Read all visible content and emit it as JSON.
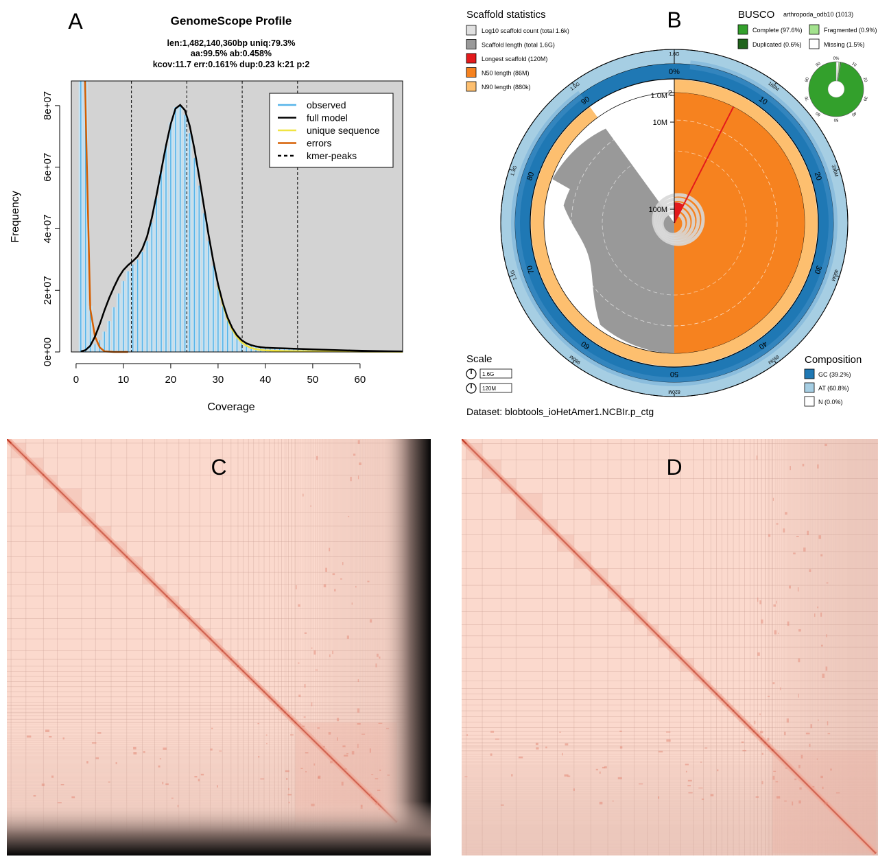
{
  "panels": {
    "a": {
      "letter": "A",
      "chart_data": {
        "type": "bar",
        "title": "GenomeScope Profile",
        "subtitle_lines": [
          "len:1,482,140,360bp uniq:79.3%",
          "aa:99.5% ab:0.458%",
          "kcov:11.7 err:0.161%  dup:0.23  k:21 p:2"
        ],
        "xlabel": "Coverage",
        "ylabel": "Frequency",
        "xlim": [
          -1,
          69
        ],
        "ylim": [
          0,
          88000000
        ],
        "xticks": [
          0,
          10,
          20,
          30,
          40,
          50,
          60
        ],
        "yticks": [
          0,
          20000000,
          40000000,
          60000000,
          80000000
        ],
        "ytick_labels": [
          "0e+00",
          "2e+07",
          "4e+07",
          "6e+07",
          "8e+07"
        ],
        "legend_position": "top-right",
        "legend": [
          {
            "label": "observed",
            "color": "#56b4e9",
            "style": "solid"
          },
          {
            "label": "full model",
            "color": "#000000",
            "style": "solid"
          },
          {
            "label": "unique sequence",
            "color": "#f0e442",
            "style": "solid"
          },
          {
            "label": "errors",
            "color": "#d55e00",
            "style": "solid"
          },
          {
            "label": "kmer-peaks",
            "color": "#000000",
            "style": "dashed"
          }
        ],
        "kmer_peaks": [
          11.7,
          23.4,
          35.1,
          46.8
        ],
        "observed": {
          "x": [
            1,
            2,
            3,
            4,
            5,
            6,
            7,
            8,
            9,
            10,
            11,
            12,
            13,
            14,
            15,
            16,
            17,
            18,
            19,
            20,
            21,
            22,
            23,
            24,
            25,
            26,
            27,
            28,
            29,
            30,
            31,
            32,
            33,
            34,
            35,
            36,
            37,
            38,
            39,
            40,
            41,
            42,
            43,
            44,
            45,
            46,
            47,
            48,
            49,
            50,
            51,
            52,
            53,
            54,
            55,
            56,
            57,
            58,
            59,
            60,
            61,
            62,
            63,
            64,
            65,
            66,
            67,
            68
          ],
          "y": [
            88000000,
            88000000,
            15000000,
            2500000,
            3800000,
            6600000,
            10000000,
            14500000,
            19000000,
            23000000,
            26200000,
            28400000,
            30000000,
            32500000,
            36000000,
            42000000,
            50000000,
            58500000,
            67000000,
            74500000,
            79500000,
            80000000,
            77000000,
            71000000,
            63000000,
            54000000,
            45000000,
            36000000,
            28000000,
            21000000,
            15000000,
            10500000,
            7200000,
            5000000,
            3500000,
            2600000,
            2000000,
            1600000,
            1350000,
            1200000,
            1100000,
            1050000,
            1000000,
            960000,
            920000,
            880000,
            840000,
            800000,
            760000,
            720000,
            680000,
            640000,
            600000,
            560000,
            520000,
            480000,
            440000,
            400000,
            370000,
            340000,
            310000,
            280000,
            250000,
            220000,
            200000,
            180000,
            160000,
            140000
          ]
        },
        "full_model": {
          "x": [
            1,
            2,
            3,
            4,
            5,
            6,
            7,
            8,
            9,
            10,
            11,
            12,
            13,
            14,
            15,
            16,
            17,
            18,
            19,
            20,
            21,
            22,
            23,
            24,
            25,
            26,
            27,
            28,
            29,
            30,
            31,
            32,
            33,
            34,
            35,
            36,
            37,
            38,
            39,
            40,
            42,
            44,
            46,
            48,
            50,
            54,
            58,
            62,
            66,
            69
          ],
          "y": [
            150000,
            600000,
            2000000,
            5000000,
            9000000,
            13500000,
            17500000,
            21000000,
            24200000,
            26600000,
            28200000,
            29500000,
            31000000,
            33500000,
            37500000,
            43500000,
            51000000,
            59000000,
            67000000,
            74000000,
            79000000,
            80200000,
            78500000,
            73500000,
            66000000,
            57000000,
            47500000,
            38000000,
            29500000,
            22000000,
            16000000,
            11200000,
            7800000,
            5400000,
            3800000,
            2800000,
            2200000,
            1800000,
            1550000,
            1400000,
            1250000,
            1150000,
            1050000,
            950000,
            850000,
            650000,
            470000,
            330000,
            230000,
            160000
          ]
        },
        "unique_sequence": {
          "x": [
            30,
            31,
            32,
            33,
            34,
            35,
            36,
            37,
            38,
            39,
            40,
            42,
            44,
            46,
            48,
            50,
            54,
            58,
            62,
            66,
            69
          ],
          "y": [
            21500000,
            15500000,
            10700000,
            7200000,
            4800000,
            3100000,
            2000000,
            1300000,
            900000,
            650000,
            500000,
            380000,
            320000,
            280000,
            250000,
            220000,
            170000,
            130000,
            100000,
            80000,
            60000
          ]
        },
        "errors": {
          "x": [
            1.9,
            2.1,
            2.6,
            3.0,
            4.0,
            5.0,
            6.0,
            8.0,
            11.0
          ],
          "y": [
            88000000,
            73000000,
            40000000,
            14000000,
            5000000,
            1500000,
            200000,
            0,
            0
          ]
        }
      }
    },
    "b": {
      "letter": "B",
      "scaffold_title": "Scaffold statistics",
      "scaffold_legend": [
        {
          "label": "Log10 scaffold count (total 1.6k)",
          "color": "#e0e0e0"
        },
        {
          "label": "Scaffold length (total 1.6G)",
          "color": "#999999"
        },
        {
          "label": "Longest scaffold (120M)",
          "color": "#e31a1c"
        },
        {
          "label": "N50 length (86M)",
          "color": "#f6821f"
        },
        {
          "label": "N90 length (880k)",
          "color": "#fdbf6f"
        }
      ],
      "busco_title": "BUSCO",
      "busco_lineage": "arthropoda_odb10 (1013)",
      "busco_legend": [
        {
          "label": "Complete (97.6%)",
          "color": "#33a02c"
        },
        {
          "label": "Fragmented (0.9%)",
          "color": "#a3e28e"
        },
        {
          "label": "Duplicated (0.6%)",
          "color": "#20641c"
        },
        {
          "label": "Missing (1.5%)",
          "color": "#ffffff"
        }
      ],
      "busco_chart": {
        "type": "pie",
        "values": [
          97.6,
          0.6,
          0.9,
          1.5
        ],
        "ticks": [
          "0%",
          "10",
          "20",
          "30",
          "40",
          "50",
          "60",
          "70",
          "80",
          "90"
        ]
      },
      "scale_title": "Scale",
      "scale_items": [
        "1.6G",
        "120M"
      ],
      "composition_title": "Composition",
      "composition_legend": [
        {
          "label": "GC (39.2%)",
          "color": "#1f78b4"
        },
        {
          "label": "AT (60.8%)",
          "color": "#a6cee3"
        },
        {
          "label": "N (0.0%)",
          "color": "#ffffff"
        }
      ],
      "dataset": "Dataset: blobtools_ioHetAmer1.NCBIr.p_ctg",
      "snail_chart": {
        "type": "pie",
        "outer_ticks": [
          "1.6G",
          "160M",
          "330M",
          "490M",
          "650M",
          "820M",
          "980M",
          "1.1G",
          "1.3G",
          "1.5G"
        ],
        "percent_ticks": [
          "0%",
          "10",
          "20",
          "30",
          "40",
          "50",
          "60",
          "70",
          "80",
          "90"
        ],
        "radial_labels": [
          "2",
          "1.0M",
          "10M",
          "100M"
        ],
        "gc_fraction": 0.392,
        "n50_fraction": 0.5,
        "n90_fraction": 0.9,
        "longest_scaffold_fraction": 0.075
      }
    },
    "c": {
      "letter": "C"
    },
    "d": {
      "letter": "D"
    }
  }
}
